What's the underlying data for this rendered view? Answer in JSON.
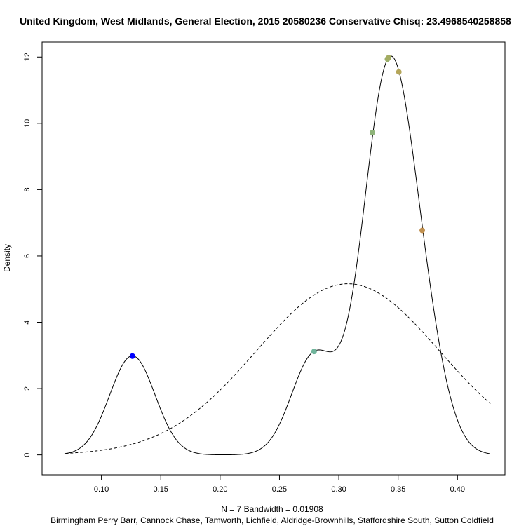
{
  "chart_data": {
    "type": "line",
    "title": "United Kingdom, West Midlands, General Election, 2015 20580236 Conservative Chisq: 23.4968540258858",
    "xlabel": "N = 7   Bandwidth = 0.01908",
    "sublabel": "Birmingham Perry Barr, Cannock Chase, Tamworth, Lichfield, Aldridge-Brownhills, Staffordshire South, Sutton Coldfield",
    "ylabel": "Density",
    "xlim": [
      0.05,
      0.44
    ],
    "ylim": [
      -0.6,
      12.45
    ],
    "x_ticks": [
      0.1,
      0.15,
      0.2,
      0.25,
      0.3,
      0.35,
      0.4
    ],
    "x_tick_labels": [
      "0.10",
      "0.15",
      "0.20",
      "0.25",
      "0.30",
      "0.35",
      "0.40"
    ],
    "y_ticks": [
      0,
      2,
      4,
      6,
      8,
      10,
      12
    ],
    "y_tick_labels": [
      "0",
      "2",
      "4",
      "6",
      "8",
      "10",
      "12"
    ],
    "bandwidth": 0.01908,
    "n": 7,
    "series": [
      {
        "style": "solid",
        "kind": "kernel-density"
      },
      {
        "style": "dashed",
        "kind": "normal-fit",
        "mean": 0.3077,
        "sd": 0.0773,
        "x_range": [
          0.0697,
          0.4277
        ]
      }
    ],
    "points": [
      {
        "x": 0.1261,
        "y": 2.98,
        "color": "#0000ff"
      },
      {
        "x": 0.2792,
        "y": 3.12,
        "color": "#6fb49b"
      },
      {
        "x": 0.3283,
        "y": 9.72,
        "color": "#8fb47a"
      },
      {
        "x": 0.341,
        "y": 11.94,
        "color": "#9aae6a"
      },
      {
        "x": 0.342,
        "y": 11.98,
        "color": "#a4ac62"
      },
      {
        "x": 0.3506,
        "y": 11.55,
        "color": "#b5a65a"
      },
      {
        "x": 0.3703,
        "y": 6.77,
        "color": "#c09050"
      }
    ]
  }
}
